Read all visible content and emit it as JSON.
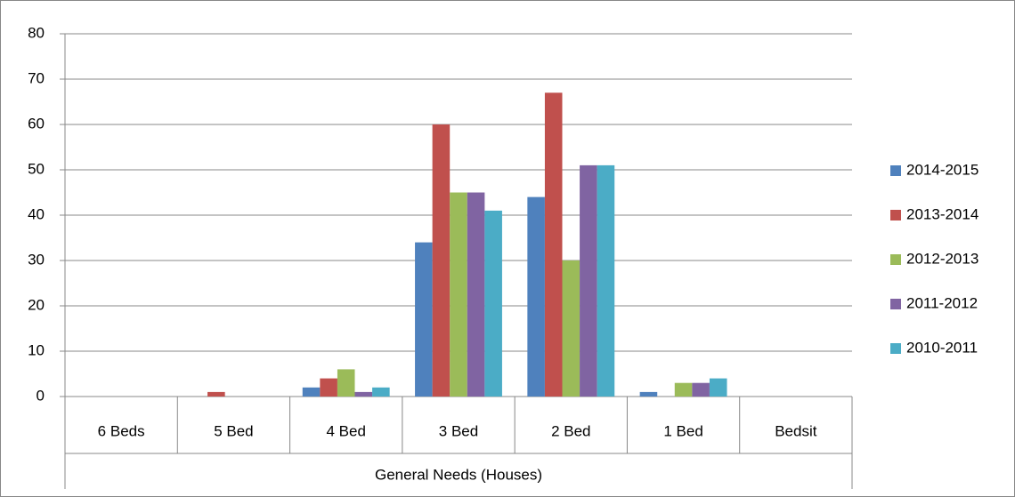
{
  "chart_data": {
    "type": "bar",
    "categories": [
      "6 Beds",
      "5 Bed",
      "4 Bed",
      "3 Bed",
      "2 Bed",
      "1 Bed",
      "Bedsit"
    ],
    "group_label": "General Needs (Houses)",
    "series": [
      {
        "name": "2014-2015",
        "color": "#4f81bd",
        "values": [
          0,
          0,
          2,
          34,
          44,
          1,
          0
        ]
      },
      {
        "name": "2013-2014",
        "color": "#c0504d",
        "values": [
          0,
          1,
          4,
          60,
          67,
          0,
          0
        ]
      },
      {
        "name": "2012-2013",
        "color": "#9bbb59",
        "values": [
          0,
          0,
          6,
          45,
          30,
          3,
          0
        ]
      },
      {
        "name": "2011-2012",
        "color": "#8064a2",
        "values": [
          0,
          0,
          1,
          45,
          51,
          3,
          0
        ]
      },
      {
        "name": "2010-2011",
        "color": "#4bacc6",
        "values": [
          0,
          0,
          2,
          41,
          51,
          4,
          0
        ]
      }
    ],
    "ylim": [
      0,
      80
    ],
    "yticks": [
      0,
      10,
      20,
      30,
      40,
      50,
      60,
      70,
      80
    ],
    "grid": true,
    "legend": "right"
  }
}
